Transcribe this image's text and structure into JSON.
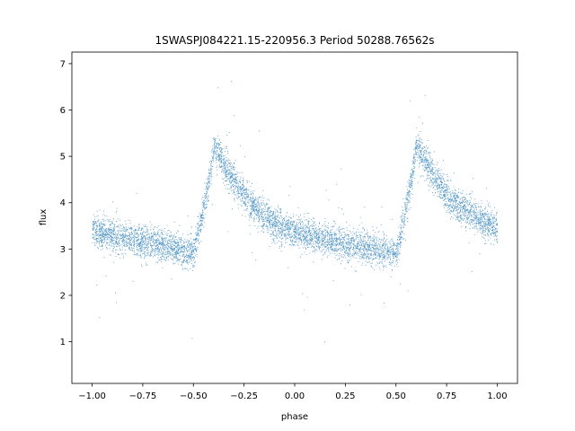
{
  "chart_data": {
    "type": "scatter",
    "title": "1SWASPJ084221.15-220956.3 Period 50288.76562s",
    "xlabel": "phase",
    "ylabel": "flux",
    "xlim": [
      -1.1,
      1.1
    ],
    "ylim": [
      0.1,
      7.25
    ],
    "xticks": [
      -1.0,
      -0.75,
      -0.5,
      -0.25,
      0.0,
      0.25,
      0.5,
      0.75,
      1.0
    ],
    "xtick_labels": [
      "−1.00",
      "−0.75",
      "−0.50",
      "−0.25",
      "0.00",
      "0.25",
      "0.50",
      "0.75",
      "1.00"
    ],
    "yticks": [
      1,
      2,
      3,
      4,
      5,
      6,
      7
    ],
    "ytick_labels": [
      "1",
      "2",
      "3",
      "4",
      "5",
      "6",
      "7"
    ],
    "grid": false,
    "point_color": "#1f77b4",
    "series": [
      {
        "phase_range": [
          -1.0,
          1.0
        ],
        "profile_x": [
          -1.0,
          -0.9,
          -0.8,
          -0.7,
          -0.6,
          -0.52,
          -0.5,
          -0.45,
          -0.42,
          -0.4,
          -0.38,
          -0.35,
          -0.3,
          -0.25,
          -0.2,
          -0.1,
          0.0,
          0.1,
          0.2,
          0.3,
          0.4,
          0.48,
          0.5,
          0.55,
          0.58,
          0.6,
          0.62,
          0.65,
          0.7,
          0.75,
          0.8,
          0.9,
          1.0
        ],
        "profile_y": [
          3.4,
          3.3,
          3.2,
          3.15,
          3.05,
          2.9,
          2.9,
          3.9,
          4.6,
          5.2,
          5.1,
          4.85,
          4.45,
          4.15,
          3.9,
          3.55,
          3.35,
          3.25,
          3.15,
          3.1,
          3.0,
          2.9,
          2.9,
          3.9,
          4.6,
          5.2,
          5.1,
          4.85,
          4.45,
          4.15,
          3.95,
          3.7,
          3.45
        ],
        "scatter_sigma": 0.17,
        "n_points": 9000
      }
    ]
  }
}
